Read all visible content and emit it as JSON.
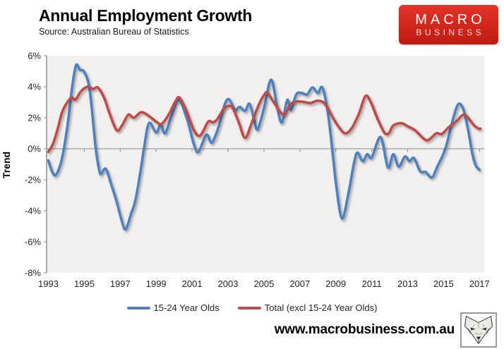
{
  "header": {
    "title": "Annual Employment Growth",
    "subtitle": "Source: Australian Bureau of Statistics",
    "logo": {
      "line1": "MACRO",
      "line2": "BUSINESS",
      "bg_color": "#d0251b",
      "text_color": "#ffffff"
    }
  },
  "footer": {
    "website": "www.macrobusiness.com.au",
    "icon": "fox-icon"
  },
  "chart_data": {
    "type": "line",
    "title": "Annual Employment Growth",
    "subtitle": "Source: Australian Bureau of Statistics",
    "ylabel": "Trend",
    "xlabel": "",
    "grid": false,
    "plot_bg": "#f1f0ee",
    "axis_color": "#8a8a8a",
    "tick_text_color": "#262626",
    "xlim": [
      1993,
      2017.3
    ],
    "ylim": [
      -8,
      6
    ],
    "legend_position": "bottom",
    "x_ticks": [
      1993,
      1995,
      1997,
      1999,
      2001,
      2003,
      2005,
      2007,
      2009,
      2011,
      2013,
      2015,
      2017
    ],
    "y_ticks": [
      {
        "value": 6,
        "label": "6%"
      },
      {
        "value": 4,
        "label": "4%"
      },
      {
        "value": 2,
        "label": "2%"
      },
      {
        "value": 0,
        "label": "0%"
      },
      {
        "value": -2,
        "label": "-2%"
      },
      {
        "value": -4,
        "label": "-4%"
      },
      {
        "value": -6,
        "label": "-6%"
      },
      {
        "value": -8,
        "label": "-8%"
      }
    ],
    "series": [
      {
        "name": "15-24 Year Olds",
        "color": "#4f81bd",
        "points": [
          [
            1993.0,
            -0.75
          ],
          [
            1993.2,
            -1.45
          ],
          [
            1993.4,
            -1.7
          ],
          [
            1993.65,
            -1.1
          ],
          [
            1993.85,
            -0.1
          ],
          [
            1994.1,
            1.8
          ],
          [
            1994.35,
            4.2
          ],
          [
            1994.55,
            5.4
          ],
          [
            1994.75,
            5.1
          ],
          [
            1995.0,
            4.95
          ],
          [
            1995.3,
            3.8
          ],
          [
            1995.64,
            0.0
          ],
          [
            1995.85,
            -1.45
          ],
          [
            1995.95,
            -1.6
          ],
          [
            1996.2,
            -1.3
          ],
          [
            1996.5,
            -2.3
          ],
          [
            1996.8,
            -3.4
          ],
          [
            1997.05,
            -4.5
          ],
          [
            1997.3,
            -5.2
          ],
          [
            1997.6,
            -4.2
          ],
          [
            1997.85,
            -3.3
          ],
          [
            1998.15,
            -1.3
          ],
          [
            1998.32,
            0.0
          ],
          [
            1998.6,
            1.65
          ],
          [
            1999.0,
            1.05
          ],
          [
            1999.25,
            1.55
          ],
          [
            1999.5,
            1.0
          ],
          [
            1999.85,
            2.1
          ],
          [
            2000.25,
            3.15
          ],
          [
            2000.7,
            2.0
          ],
          [
            2001.1,
            0.3
          ],
          [
            2001.35,
            -0.2
          ],
          [
            2001.8,
            0.9
          ],
          [
            2002.1,
            0.4
          ],
          [
            2002.5,
            1.5
          ],
          [
            2002.8,
            2.8
          ],
          [
            2003.05,
            3.2
          ],
          [
            2003.4,
            2.5
          ],
          [
            2003.65,
            2.7
          ],
          [
            2003.95,
            2.45
          ],
          [
            2004.2,
            2.9
          ],
          [
            2004.45,
            1.9
          ],
          [
            2004.65,
            1.25
          ],
          [
            2005.0,
            2.6
          ],
          [
            2005.4,
            4.45
          ],
          [
            2005.75,
            2.6
          ],
          [
            2006.0,
            1.7
          ],
          [
            2006.3,
            3.15
          ],
          [
            2006.5,
            2.5
          ],
          [
            2006.8,
            3.5
          ],
          [
            2007.1,
            3.6
          ],
          [
            2007.4,
            3.5
          ],
          [
            2007.7,
            3.95
          ],
          [
            2008.0,
            3.6
          ],
          [
            2008.25,
            3.95
          ],
          [
            2008.55,
            2.4
          ],
          [
            2008.8,
            0.0
          ],
          [
            2009.05,
            -2.6
          ],
          [
            2009.35,
            -4.5
          ],
          [
            2009.7,
            -2.9
          ],
          [
            2010.0,
            -1.0
          ],
          [
            2010.2,
            -0.25
          ],
          [
            2010.5,
            -0.8
          ],
          [
            2010.75,
            -0.35
          ],
          [
            2011.0,
            -0.55
          ],
          [
            2011.5,
            0.75
          ],
          [
            2011.9,
            -1.2
          ],
          [
            2012.2,
            -0.35
          ],
          [
            2012.5,
            -1.15
          ],
          [
            2012.85,
            -0.5
          ],
          [
            2013.1,
            -0.8
          ],
          [
            2013.35,
            -0.6
          ],
          [
            2013.7,
            -1.45
          ],
          [
            2014.0,
            -1.5
          ],
          [
            2014.35,
            -1.85
          ],
          [
            2014.65,
            -1.15
          ],
          [
            2015.1,
            0.0
          ],
          [
            2015.45,
            1.6
          ],
          [
            2015.8,
            2.85
          ],
          [
            2016.1,
            2.55
          ],
          [
            2016.35,
            1.3
          ],
          [
            2016.6,
            -0.3
          ],
          [
            2016.8,
            -1.1
          ],
          [
            2017.0,
            -1.35
          ]
        ]
      },
      {
        "name": "Total (excl 15-24 Year Olds)",
        "color": "#bf4b49",
        "points": [
          [
            1993.0,
            -0.2
          ],
          [
            1993.25,
            0.3
          ],
          [
            1993.5,
            1.2
          ],
          [
            1993.75,
            2.3
          ],
          [
            1994.0,
            2.9
          ],
          [
            1994.3,
            3.3
          ],
          [
            1994.5,
            3.15
          ],
          [
            1994.75,
            3.6
          ],
          [
            1995.0,
            3.9
          ],
          [
            1995.25,
            4.0
          ],
          [
            1995.5,
            3.85
          ],
          [
            1995.75,
            3.95
          ],
          [
            1996.1,
            3.3
          ],
          [
            1996.4,
            2.3
          ],
          [
            1996.8,
            1.2
          ],
          [
            1997.1,
            1.5
          ],
          [
            1997.45,
            2.2
          ],
          [
            1997.75,
            2.0
          ],
          [
            1998.15,
            2.35
          ],
          [
            1998.5,
            2.2
          ],
          [
            1999.0,
            1.75
          ],
          [
            1999.3,
            1.6
          ],
          [
            1999.7,
            2.2
          ],
          [
            2000.05,
            3.0
          ],
          [
            2000.3,
            3.3
          ],
          [
            2000.7,
            2.4
          ],
          [
            2001.1,
            1.2
          ],
          [
            2001.45,
            0.85
          ],
          [
            2001.9,
            1.75
          ],
          [
            2002.15,
            1.7
          ],
          [
            2002.4,
            1.9
          ],
          [
            2002.75,
            2.55
          ],
          [
            2003.0,
            2.75
          ],
          [
            2003.25,
            2.65
          ],
          [
            2003.6,
            1.7
          ],
          [
            2003.95,
            0.7
          ],
          [
            2004.3,
            1.6
          ],
          [
            2004.7,
            2.8
          ],
          [
            2005.0,
            3.45
          ],
          [
            2005.2,
            3.6
          ],
          [
            2005.6,
            2.9
          ],
          [
            2006.1,
            2.2
          ],
          [
            2006.5,
            2.9
          ],
          [
            2006.9,
            3.05
          ],
          [
            2007.3,
            3.0
          ],
          [
            2007.6,
            2.95
          ],
          [
            2008.0,
            3.1
          ],
          [
            2008.35,
            2.95
          ],
          [
            2008.7,
            2.3
          ],
          [
            2009.05,
            1.6
          ],
          [
            2009.5,
            1.0
          ],
          [
            2009.9,
            1.35
          ],
          [
            2010.3,
            2.3
          ],
          [
            2010.65,
            3.4
          ],
          [
            2010.95,
            3.0
          ],
          [
            2011.3,
            2.0
          ],
          [
            2011.7,
            1.05
          ],
          [
            2011.95,
            1.0
          ],
          [
            2012.2,
            1.5
          ],
          [
            2012.65,
            1.65
          ],
          [
            2013.0,
            1.45
          ],
          [
            2013.4,
            1.2
          ],
          [
            2013.95,
            0.6
          ],
          [
            2014.2,
            0.6
          ],
          [
            2014.6,
            1.0
          ],
          [
            2014.9,
            0.95
          ],
          [
            2015.3,
            1.4
          ],
          [
            2015.7,
            1.75
          ],
          [
            2016.1,
            2.2
          ],
          [
            2016.4,
            1.95
          ],
          [
            2016.7,
            1.5
          ],
          [
            2016.95,
            1.3
          ],
          [
            2017.05,
            1.3
          ]
        ]
      }
    ]
  }
}
